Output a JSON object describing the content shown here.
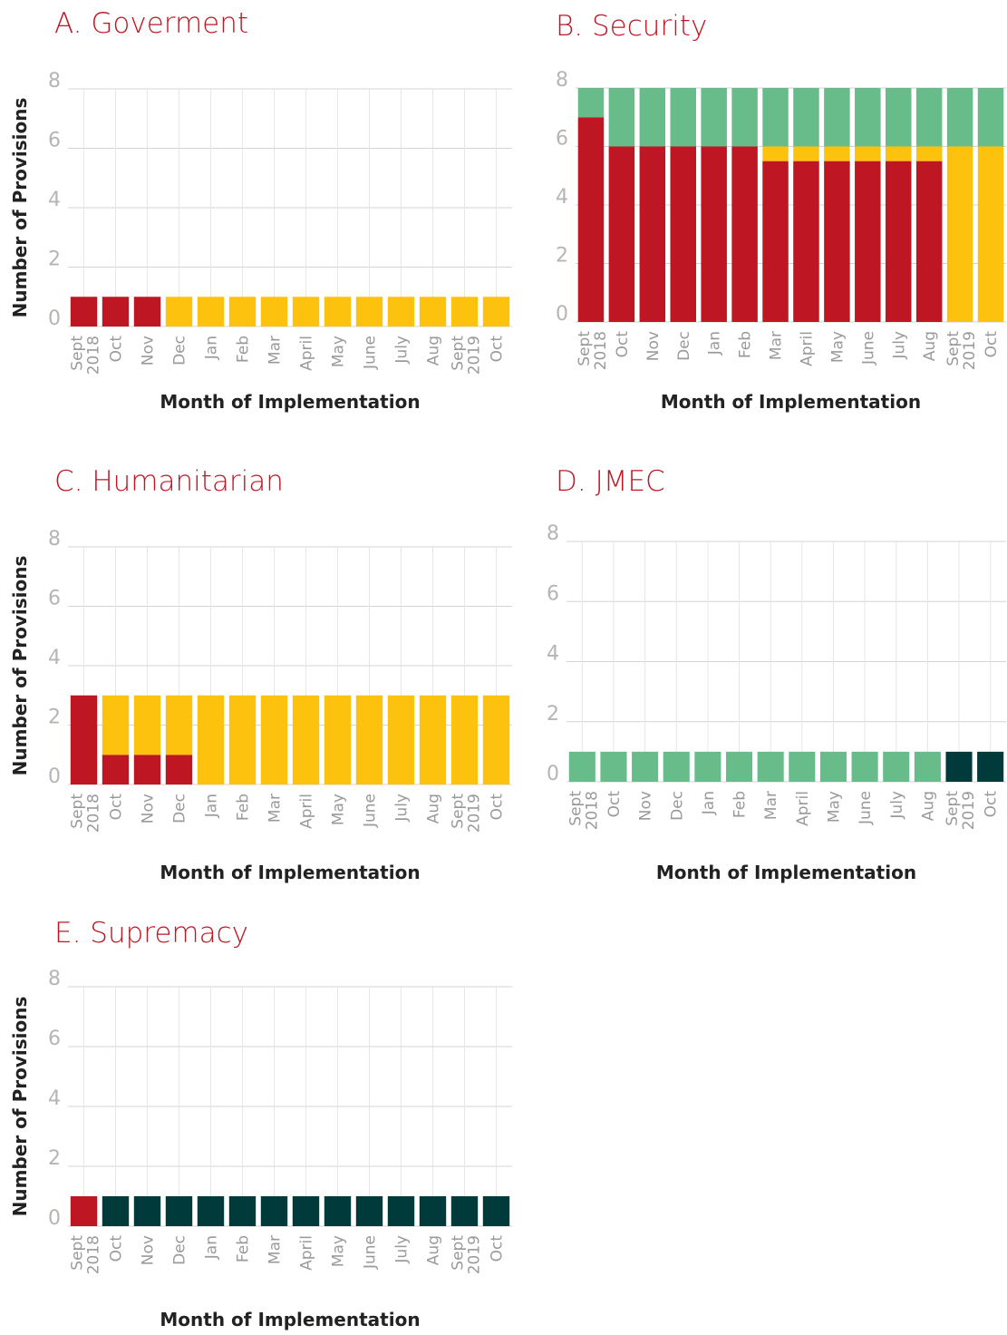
{
  "chart_data": [
    {
      "type": "bar",
      "stacked": true,
      "title": "A. Goverment",
      "y_label": "Number of Provisions",
      "x_label": "Month of Implementation",
      "categories": [
        "Sept 2018",
        "Oct",
        "Nov",
        "Dec",
        "Jan",
        "Feb",
        "Mar",
        "April",
        "May",
        "June",
        "July",
        "Aug",
        "Sept 2019",
        "Oct"
      ],
      "series": [
        {
          "color": "#be1622",
          "values": [
            1,
            1,
            1,
            0,
            0,
            0,
            0,
            0,
            0,
            0,
            0,
            0,
            0,
            0
          ]
        },
        {
          "color": "#fdc20e",
          "values": [
            0,
            0,
            0,
            1,
            1,
            1,
            1,
            1,
            1,
            1,
            1,
            1,
            1,
            1
          ]
        }
      ],
      "ylim": [
        0,
        8
      ],
      "yticks": [
        0,
        2,
        4,
        6,
        8
      ],
      "grid": true
    },
    {
      "type": "bar",
      "stacked": true,
      "title": "B. Security",
      "x_label": "Month of Implementation",
      "categories": [
        "Sept 2018",
        "Oct",
        "Nov",
        "Dec",
        "Jan",
        "Feb",
        "Mar",
        "April",
        "May",
        "June",
        "July",
        "Aug",
        "Sept 2019",
        "Oct"
      ],
      "series": [
        {
          "color": "#be1622",
          "values": [
            7,
            6,
            6,
            6,
            6,
            6,
            5.5,
            5.5,
            5.5,
            5.5,
            5.5,
            5.5,
            0,
            0
          ]
        },
        {
          "color": "#fdc20e",
          "values": [
            0,
            0,
            0,
            0,
            0,
            0,
            0.5,
            0.5,
            0.5,
            0.5,
            0.5,
            0.5,
            6,
            6
          ]
        },
        {
          "color": "#67bc89",
          "values": [
            1,
            2,
            2,
            2,
            2,
            2,
            2,
            2,
            2,
            2,
            2,
            2,
            2,
            2
          ]
        }
      ],
      "ylim": [
        0,
        8
      ],
      "yticks": [
        0,
        2,
        4,
        6,
        8
      ],
      "grid": true
    },
    {
      "type": "bar",
      "stacked": true,
      "title": "C. Humanitarian",
      "y_label": "Number of Provisions",
      "x_label": "Month of Implementation",
      "categories": [
        "Sept 2018",
        "Oct",
        "Nov",
        "Dec",
        "Jan",
        "Feb",
        "Mar",
        "April",
        "May",
        "June",
        "July",
        "Aug",
        "Sept 2019",
        "Oct"
      ],
      "series": [
        {
          "color": "#be1622",
          "values": [
            3,
            1,
            1,
            1,
            0,
            0,
            0,
            0,
            0,
            0,
            0,
            0,
            0,
            0
          ]
        },
        {
          "color": "#fdc20e",
          "values": [
            0,
            2,
            2,
            2,
            3,
            3,
            3,
            3,
            3,
            3,
            3,
            3,
            3,
            3
          ]
        }
      ],
      "ylim": [
        0,
        8
      ],
      "yticks": [
        0,
        2,
        4,
        6,
        8
      ],
      "grid": true
    },
    {
      "type": "bar",
      "stacked": true,
      "title": "D. JMEC",
      "x_label": "Month of Implementation",
      "categories": [
        "Sept 2018",
        "Oct",
        "Nov",
        "Dec",
        "Jan",
        "Feb",
        "Mar",
        "April",
        "May",
        "June",
        "July",
        "Aug",
        "Sept 2019",
        "Oct"
      ],
      "series": [
        {
          "color": "#67bc89",
          "values": [
            1,
            1,
            1,
            1,
            1,
            1,
            1,
            1,
            1,
            1,
            1,
            1,
            0,
            0
          ]
        },
        {
          "color": "#003a3a",
          "values": [
            0,
            0,
            0,
            0,
            0,
            0,
            0,
            0,
            0,
            0,
            0,
            0,
            1,
            1
          ]
        }
      ],
      "ylim": [
        0,
        8
      ],
      "yticks": [
        0,
        2,
        4,
        6,
        8
      ],
      "grid": true
    },
    {
      "type": "bar",
      "stacked": true,
      "title": "E. Supremacy",
      "y_label": "Number of Provisions",
      "x_label": "Month of Implementation",
      "categories": [
        "Sept 2018",
        "Oct",
        "Nov",
        "Dec",
        "Jan",
        "Feb",
        "Mar",
        "April",
        "May",
        "June",
        "July",
        "Aug",
        "Sept 2019",
        "Oct"
      ],
      "series": [
        {
          "color": "#be1622",
          "values": [
            1,
            0,
            0,
            0,
            0,
            0,
            0,
            0,
            0,
            0,
            0,
            0,
            0,
            0
          ]
        },
        {
          "color": "#003a3a",
          "values": [
            0,
            1,
            1,
            1,
            1,
            1,
            1,
            1,
            1,
            1,
            1,
            1,
            1,
            1
          ]
        }
      ],
      "ylim": [
        0,
        8
      ],
      "yticks": [
        0,
        2,
        4,
        6,
        8
      ],
      "grid": true
    }
  ]
}
